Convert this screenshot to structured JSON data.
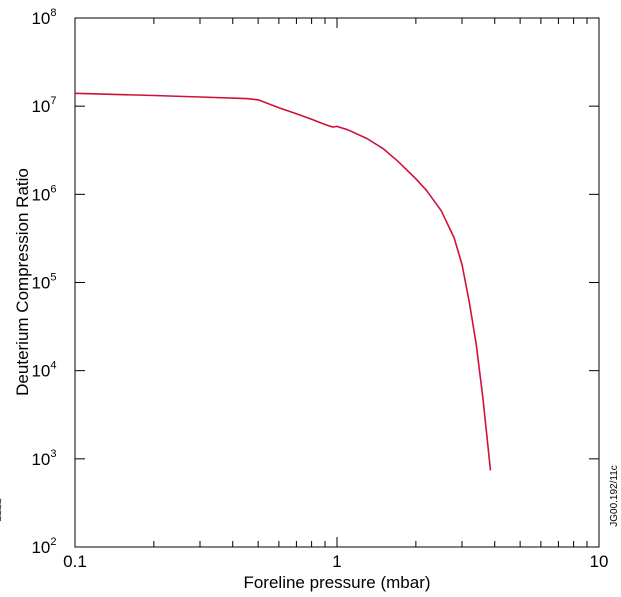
{
  "chart_data": {
    "type": "line",
    "title": "",
    "xlabel": "Foreline pressure (mbar)",
    "ylabel": "Deuterium Compression Ratio",
    "xscale": "log",
    "yscale": "log",
    "xlim": [
      0.1,
      10
    ],
    "ylim": [
      100,
      100000000
    ],
    "grid": false,
    "legend": "none",
    "x_ticks": [
      {
        "value": 0.1,
        "label": "0.1"
      },
      {
        "value": 1,
        "label": "1"
      },
      {
        "value": 10,
        "label": "10"
      }
    ],
    "y_ticks": [
      {
        "value": 100,
        "base": "10",
        "exp": "2"
      },
      {
        "value": 1000,
        "base": "10",
        "exp": "3"
      },
      {
        "value": 10000,
        "base": "10",
        "exp": "4"
      },
      {
        "value": 100000,
        "base": "10",
        "exp": "5"
      },
      {
        "value": 1000000,
        "base": "10",
        "exp": "6"
      },
      {
        "value": 10000000,
        "base": "10",
        "exp": "7"
      },
      {
        "value": 100000000,
        "base": "10",
        "exp": "8"
      }
    ],
    "series": [
      {
        "color": "#d0103a",
        "points": [
          [
            0.1,
            14000000
          ],
          [
            0.2,
            13200000
          ],
          [
            0.3,
            12700000
          ],
          [
            0.45,
            12200000
          ],
          [
            0.5,
            11800000
          ],
          [
            0.6,
            9600000
          ],
          [
            0.7,
            8200000
          ],
          [
            0.8,
            7100000
          ],
          [
            0.9,
            6200000
          ],
          [
            0.96,
            5800000
          ],
          [
            1.0,
            5900000
          ],
          [
            1.1,
            5400000
          ],
          [
            1.3,
            4300000
          ],
          [
            1.5,
            3300000
          ],
          [
            1.7,
            2400000
          ],
          [
            2.0,
            1500000
          ],
          [
            2.2,
            1100000
          ],
          [
            2.5,
            650000
          ],
          [
            2.8,
            320000
          ],
          [
            3.0,
            160000
          ],
          [
            3.2,
            60000
          ],
          [
            3.4,
            20000
          ],
          [
            3.6,
            5000
          ],
          [
            3.75,
            1600
          ],
          [
            3.85,
            750
          ]
        ]
      }
    ]
  },
  "reference_code": "JG00.192/11c",
  "side_marks": "~~~~"
}
